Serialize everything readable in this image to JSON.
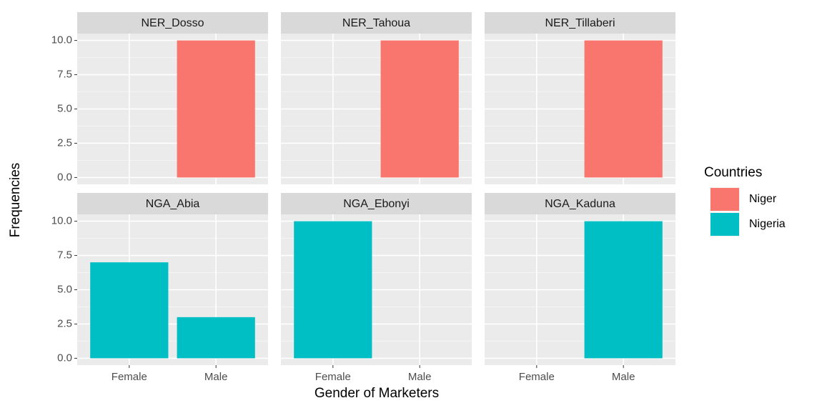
{
  "chart_data": [
    {
      "type": "bar",
      "title": "NER_Dosso",
      "categories": [
        "Female",
        "Male"
      ],
      "values": [
        null,
        10
      ],
      "color": "#f8766d",
      "ylim": [
        -0.5,
        10.5
      ],
      "yticks": [
        {
          "value": 0,
          "label": "0.0"
        },
        2.5,
        {
          "value": 5,
          "label": "5.0"
        },
        7.5,
        {
          "value": 10,
          "label": "10.0"
        }
      ],
      "grid": true
    },
    {
      "type": "bar",
      "title": "NER_Tahoua",
      "categories": [
        "Female",
        "Male"
      ],
      "values": [
        null,
        10
      ],
      "color": "#f8766d",
      "ylim": [
        -0.5,
        10.5
      ],
      "yticks": [
        {
          "value": 0,
          "label": "0.0"
        },
        2.5,
        {
          "value": 5,
          "label": "5.0"
        },
        7.5,
        {
          "value": 10,
          "label": "10.0"
        }
      ],
      "grid": true
    },
    {
      "type": "bar",
      "title": "NER_Tillaberi",
      "categories": [
        "Female",
        "Male"
      ],
      "values": [
        null,
        10
      ],
      "color": "#f8766d",
      "ylim": [
        -0.5,
        10.5
      ],
      "yticks": [
        {
          "value": 0,
          "label": "0.0"
        },
        2.5,
        {
          "value": 5,
          "label": "5.0"
        },
        7.5,
        {
          "value": 10,
          "label": "10.0"
        }
      ],
      "grid": true
    },
    {
      "type": "bar",
      "title": "NGA_Abia",
      "categories": [
        "Female",
        "Male"
      ],
      "values": [
        7,
        3
      ],
      "color": "#00bfc4",
      "ylim": [
        -0.5,
        10.5
      ],
      "yticks": [
        {
          "value": 0,
          "label": "0.0"
        },
        2.5,
        {
          "value": 5,
          "label": "5.0"
        },
        7.5,
        {
          "value": 10,
          "label": "10.0"
        }
      ],
      "grid": true
    },
    {
      "type": "bar",
      "title": "NGA_Ebonyi",
      "categories": [
        "Female",
        "Male"
      ],
      "values": [
        10,
        null
      ],
      "color": "#00bfc4",
      "ylim": [
        -0.5,
        10.5
      ],
      "yticks": [
        {
          "value": 0,
          "label": "0.0"
        },
        2.5,
        {
          "value": 5,
          "label": "5.0"
        },
        7.5,
        {
          "value": 10,
          "label": "10.0"
        }
      ],
      "grid": true
    },
    {
      "type": "bar",
      "title": "NGA_Kaduna",
      "categories": [
        "Female",
        "Male"
      ],
      "values": [
        null,
        10
      ],
      "color": "#00bfc4",
      "ylim": [
        -0.5,
        10.5
      ],
      "yticks": [
        {
          "value": 0,
          "label": "0.0"
        },
        2.5,
        {
          "value": 5,
          "label": "5.0"
        },
        7.5,
        {
          "value": 10,
          "label": "10.0"
        }
      ],
      "grid": true
    }
  ],
  "xlabel": "Gender of Marketers",
  "ylabel": "Frequencies",
  "legend": {
    "title": "Countries",
    "items": [
      {
        "name": "Niger",
        "color": "#f8766d"
      },
      {
        "name": "Nigeria",
        "color": "#00bfc4"
      }
    ]
  }
}
